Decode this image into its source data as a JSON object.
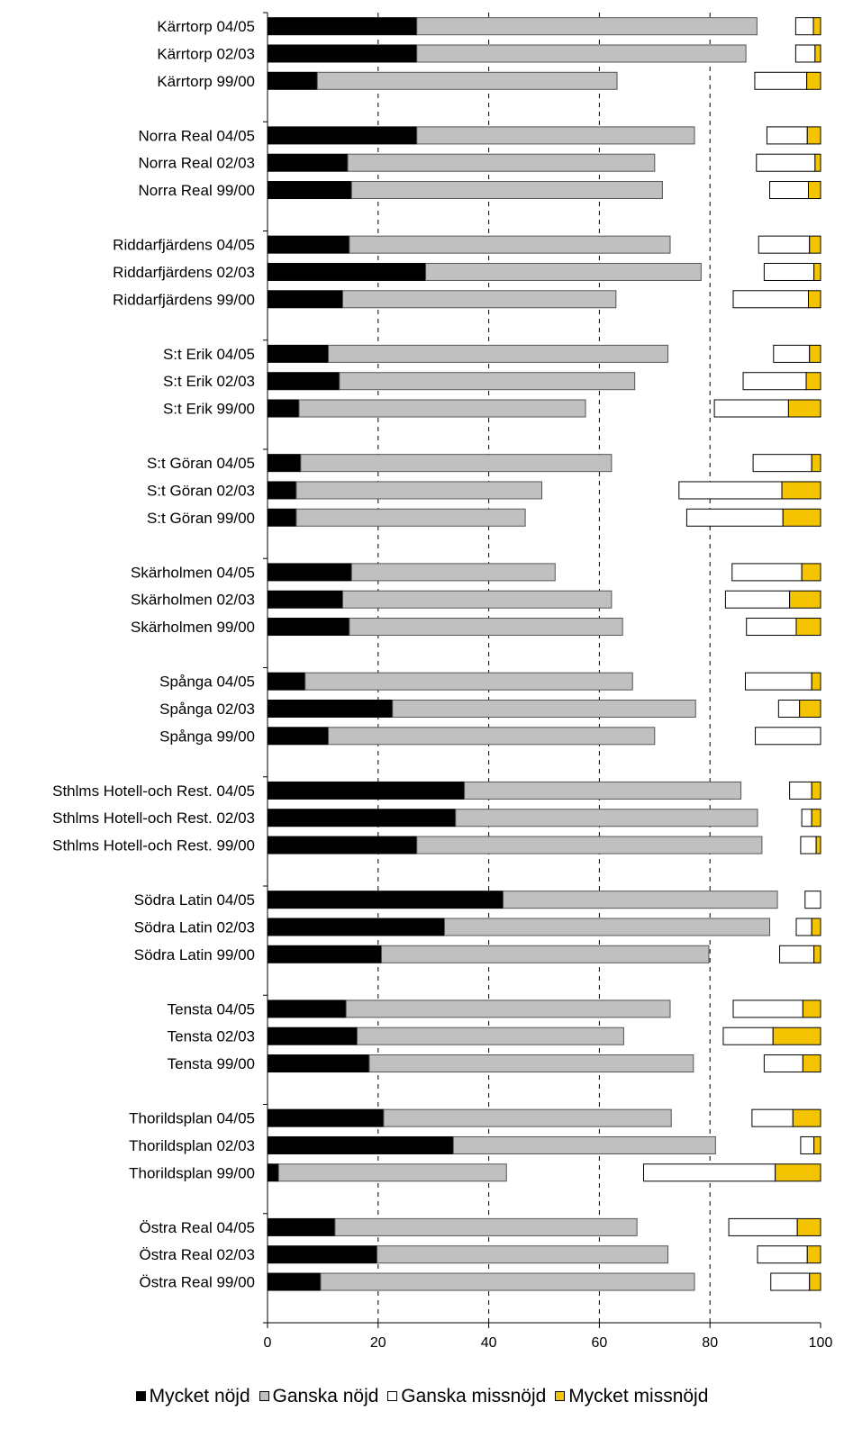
{
  "chart_data": {
    "type": "bar",
    "orientation": "horizontal",
    "stacked": true,
    "title": "",
    "xlim": [
      0,
      100
    ],
    "x_ticks": [
      "0",
      "20",
      "40",
      "60",
      "80",
      "100"
    ],
    "grid": "vertical dashed at 20, 40, 60, 80",
    "legend_position": "bottom",
    "series": [
      {
        "name": "Mycket nöjd",
        "color": "#000000"
      },
      {
        "name": "Ganska nöjd",
        "color": "#c0c0c0"
      },
      {
        "name": "Ganska missnöjd",
        "color": "#ffffff"
      },
      {
        "name": "Mycket missnöjd",
        "color": "#f5c400"
      }
    ],
    "groups": [
      {
        "school": "Kärrtorp",
        "rows": [
          {
            "year": "04/05",
            "mycket_nojd": 27,
            "ganska_nojd": 61.5,
            "ganska_missnojd": 3.2,
            "mycket_missnojd": 1.3
          },
          {
            "year": "02/03",
            "mycket_nojd": 27,
            "ganska_nojd": 59.5,
            "ganska_missnojd": 3.5,
            "mycket_missnojd": 1.0
          },
          {
            "year": "99/00",
            "mycket_nojd": 9,
            "ganska_nojd": 54.2,
            "ganska_missnojd": 9.4,
            "mycket_missnojd": 2.5
          }
        ]
      },
      {
        "school": "Norra Real",
        "rows": [
          {
            "year": "04/05",
            "mycket_nojd": 27,
            "ganska_nojd": 50.2,
            "ganska_missnojd": 7.3,
            "mycket_missnojd": 2.4
          },
          {
            "year": "02/03",
            "mycket_nojd": 14.5,
            "ganska_nojd": 55.5,
            "ganska_missnojd": 10.6,
            "mycket_missnojd": 1.0
          },
          {
            "year": "99/00",
            "mycket_nojd": 15.2,
            "ganska_nojd": 56.2,
            "ganska_missnojd": 7.0,
            "mycket_missnojd": 2.2
          }
        ]
      },
      {
        "school": "Riddarfjärdens",
        "rows": [
          {
            "year": "04/05",
            "mycket_nojd": 14.8,
            "ganska_nojd": 58.0,
            "ganska_missnojd": 9.2,
            "mycket_missnojd": 2.0
          },
          {
            "year": "02/03",
            "mycket_nojd": 28.6,
            "ganska_nojd": 49.8,
            "ganska_missnojd": 9.0,
            "mycket_missnojd": 1.2
          },
          {
            "year": "99/00",
            "mycket_nojd": 13.6,
            "ganska_nojd": 49.4,
            "ganska_missnojd": 13.6,
            "mycket_missnojd": 2.2
          }
        ]
      },
      {
        "school": "S:t Erik",
        "rows": [
          {
            "year": "04/05",
            "mycket_nojd": 11.0,
            "ganska_nojd": 61.4,
            "ganska_missnojd": 6.5,
            "mycket_missnojd": 2.0
          },
          {
            "year": "02/03",
            "mycket_nojd": 13.0,
            "ganska_nojd": 53.4,
            "ganska_missnojd": 11.4,
            "mycket_missnojd": 2.6
          },
          {
            "year": "99/00",
            "mycket_nojd": 5.7,
            "ganska_nojd": 51.8,
            "ganska_missnojd": 13.4,
            "mycket_missnojd": 5.8
          }
        ]
      },
      {
        "school": "S:t Göran",
        "rows": [
          {
            "year": "04/05",
            "mycket_nojd": 6.0,
            "ganska_nojd": 56.2,
            "ganska_missnojd": 10.6,
            "mycket_missnojd": 1.6
          },
          {
            "year": "02/03",
            "mycket_nojd": 5.2,
            "ganska_nojd": 44.4,
            "ganska_missnojd": 18.6,
            "mycket_missnojd": 7.0
          },
          {
            "year": "99/00",
            "mycket_nojd": 5.2,
            "ganska_nojd": 41.4,
            "ganska_missnojd": 17.4,
            "mycket_missnojd": 6.8
          }
        ]
      },
      {
        "school": "Skärholmen",
        "rows": [
          {
            "year": "04/05",
            "mycket_nojd": 15.2,
            "ganska_nojd": 36.8,
            "ganska_missnojd": 12.6,
            "mycket_missnojd": 3.4
          },
          {
            "year": "02/03",
            "mycket_nojd": 13.6,
            "ganska_nojd": 48.6,
            "ganska_missnojd": 11.6,
            "mycket_missnojd": 5.6
          },
          {
            "year": "99/00",
            "mycket_nojd": 14.8,
            "ganska_nojd": 49.4,
            "ganska_missnojd": 9.0,
            "mycket_missnojd": 4.4
          }
        ]
      },
      {
        "school": "Spånga",
        "rows": [
          {
            "year": "04/05",
            "mycket_nojd": 6.8,
            "ganska_nojd": 59.2,
            "ganska_missnojd": 12.0,
            "mycket_missnojd": 1.6
          },
          {
            "year": "02/03",
            "mycket_nojd": 22.6,
            "ganska_nojd": 54.8,
            "ganska_missnojd": 3.8,
            "mycket_missnojd": 3.8
          },
          {
            "year": "99/00",
            "mycket_nojd": 11.0,
            "ganska_nojd": 59.0,
            "ganska_missnojd": 11.8,
            "mycket_missnojd": 0
          }
        ]
      },
      {
        "school": "Sthlms Hotell-och Rest.",
        "rows": [
          {
            "year": "04/05",
            "mycket_nojd": 35.6,
            "ganska_nojd": 50.0,
            "ganska_missnojd": 4.0,
            "mycket_missnojd": 1.6
          },
          {
            "year": "02/03",
            "mycket_nojd": 34.0,
            "ganska_nojd": 54.6,
            "ganska_missnojd": 1.8,
            "mycket_missnojd": 1.6
          },
          {
            "year": "99/00",
            "mycket_nojd": 27.0,
            "ganska_nojd": 62.4,
            "ganska_missnojd": 2.8,
            "mycket_missnojd": 0.8
          }
        ]
      },
      {
        "school": "Södra Latin",
        "rows": [
          {
            "year": "04/05",
            "mycket_nojd": 42.6,
            "ganska_nojd": 49.6,
            "ganska_missnojd": 2.8,
            "mycket_missnojd": 0
          },
          {
            "year": "02/03",
            "mycket_nojd": 32.0,
            "ganska_nojd": 58.8,
            "ganska_missnojd": 2.8,
            "mycket_missnojd": 1.6
          },
          {
            "year": "99/00",
            "mycket_nojd": 20.6,
            "ganska_nojd": 59.2,
            "ganska_missnojd": 6.2,
            "mycket_missnojd": 1.2
          }
        ]
      },
      {
        "school": "Tensta",
        "rows": [
          {
            "year": "04/05",
            "mycket_nojd": 14.2,
            "ganska_nojd": 58.6,
            "ganska_missnojd": 12.6,
            "mycket_missnojd": 3.2
          },
          {
            "year": "02/03",
            "mycket_nojd": 16.2,
            "ganska_nojd": 48.2,
            "ganska_missnojd": 9.0,
            "mycket_missnojd": 8.6
          },
          {
            "year": "99/00",
            "mycket_nojd": 18.4,
            "ganska_nojd": 58.6,
            "ganska_missnojd": 7.0,
            "mycket_missnojd": 3.2
          }
        ]
      },
      {
        "school": "Thorildsplan",
        "rows": [
          {
            "year": "04/05",
            "mycket_nojd": 21.0,
            "ganska_nojd": 52.0,
            "ganska_missnojd": 7.4,
            "mycket_missnojd": 5.0
          },
          {
            "year": "02/03",
            "mycket_nojd": 33.6,
            "ganska_nojd": 47.4,
            "ganska_missnojd": 2.4,
            "mycket_missnojd": 1.2
          },
          {
            "year": "99/00",
            "mycket_nojd": 2.0,
            "ganska_nojd": 41.2,
            "ganska_missnojd": 23.8,
            "mycket_missnojd": 8.2
          }
        ]
      },
      {
        "school": "Östra Real",
        "rows": [
          {
            "year": "04/05",
            "mycket_nojd": 12.2,
            "ganska_nojd": 54.6,
            "ganska_missnojd": 12.4,
            "mycket_missnojd": 4.2
          },
          {
            "year": "02/03",
            "mycket_nojd": 19.8,
            "ganska_nojd": 52.6,
            "ganska_missnojd": 9.0,
            "mycket_missnojd": 2.4
          },
          {
            "year": "99/00",
            "mycket_nojd": 9.6,
            "ganska_nojd": 67.6,
            "ganska_missnojd": 7.0,
            "mycket_missnojd": 2.0
          }
        ]
      }
    ]
  }
}
